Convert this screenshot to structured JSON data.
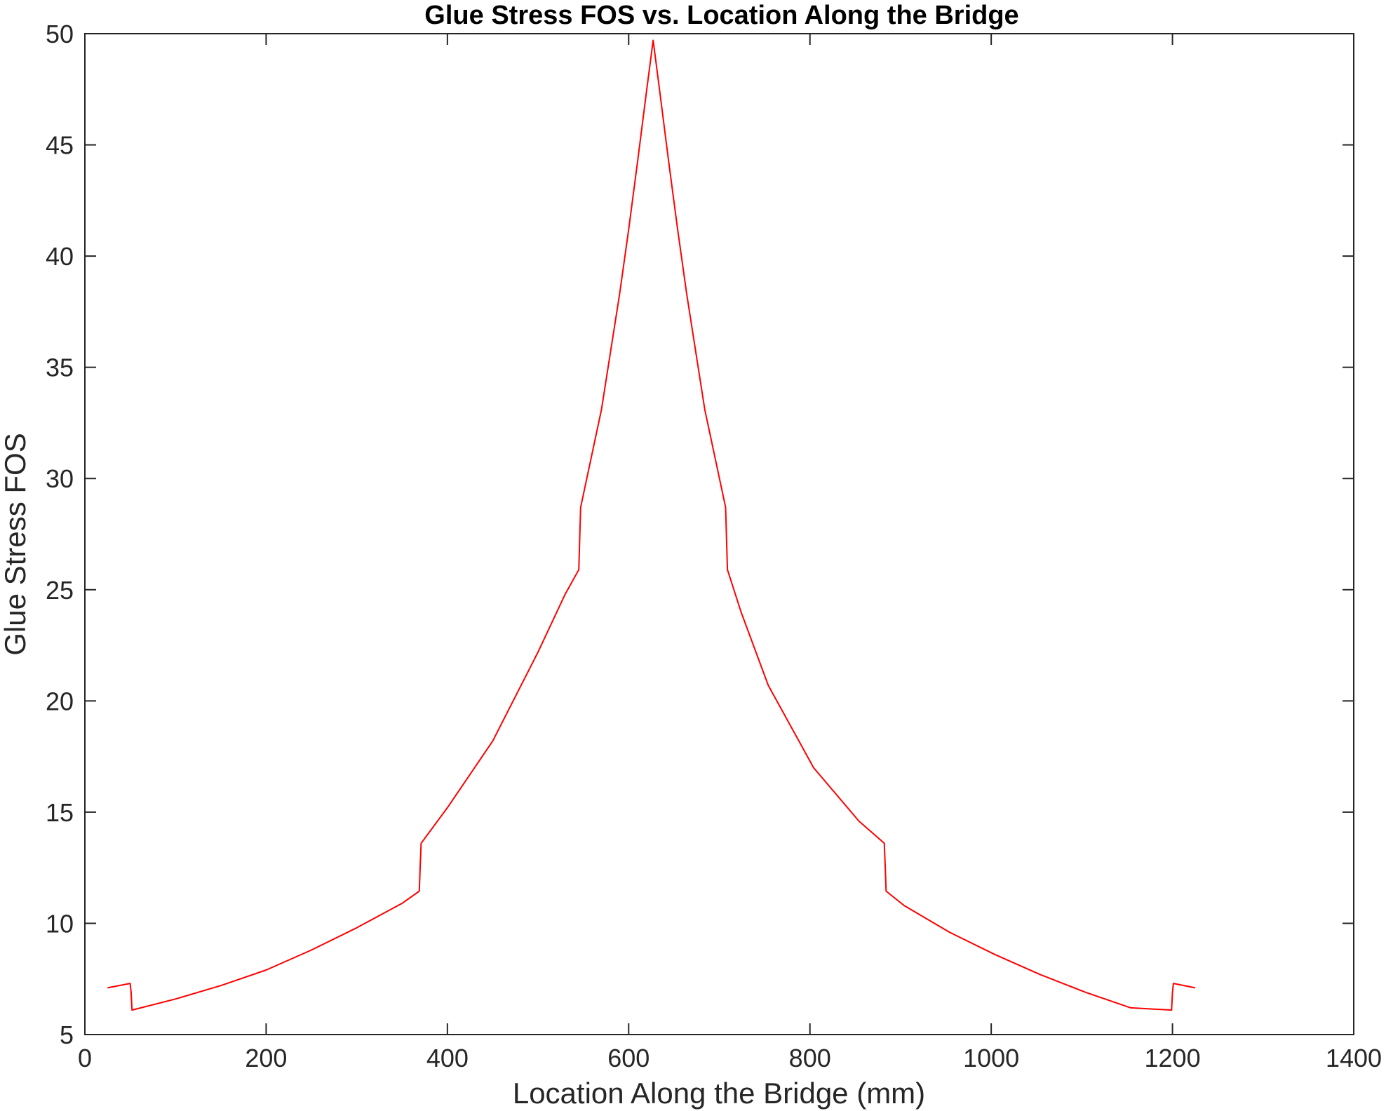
{
  "chart_data": {
    "type": "line",
    "title": "Glue Stress FOS vs. Location Along the Bridge",
    "xlabel": "Location Along the Bridge (mm)",
    "ylabel": "Glue Stress FOS",
    "xlim": [
      0,
      1400
    ],
    "ylim": [
      5,
      50
    ],
    "xticks": [
      0,
      200,
      400,
      600,
      800,
      1000,
      1200,
      1400
    ],
    "xtick_labels": [
      "0",
      "200",
      "400",
      "600",
      "800",
      "1000",
      "1200",
      "1400"
    ],
    "yticks": [
      5,
      10,
      15,
      20,
      25,
      30,
      35,
      40,
      45,
      50
    ],
    "ytick_labels": [
      "5",
      "10",
      "15",
      "20",
      "25",
      "30",
      "35",
      "40",
      "45",
      "50"
    ],
    "grid": false,
    "box": true,
    "series": [
      {
        "color": "#ff0000",
        "x": [
          25,
          50,
          51,
          52,
          100,
          150,
          200,
          250,
          300,
          350,
          369,
          370,
          371,
          400,
          450,
          500,
          530,
          545,
          546,
          547,
          570,
          590,
          600,
          610,
          620,
          627,
          634,
          644,
          654,
          664,
          684,
          707,
          708,
          709,
          724,
          754,
          804,
          854,
          882,
          883,
          884,
          904,
          954,
          1004,
          1054,
          1104,
          1154,
          1199,
          1200,
          1201,
          1225
        ],
        "y": [
          7.1,
          7.3,
          6.9,
          6.1,
          6.6,
          7.2,
          7.9,
          8.8,
          9.8,
          10.9,
          11.45,
          12.6,
          13.6,
          15.2,
          18.2,
          22.2,
          24.8,
          25.9,
          27.3,
          28.7,
          33.1,
          38.3,
          41.2,
          44.3,
          47.5,
          49.7,
          47.5,
          44.3,
          41.2,
          38.3,
          33.1,
          28.7,
          27.3,
          25.9,
          24.0,
          20.7,
          17.0,
          14.6,
          13.6,
          12.6,
          11.45,
          10.8,
          9.6,
          8.6,
          7.7,
          6.9,
          6.2,
          6.1,
          6.9,
          7.3,
          7.1
        ]
      }
    ]
  }
}
